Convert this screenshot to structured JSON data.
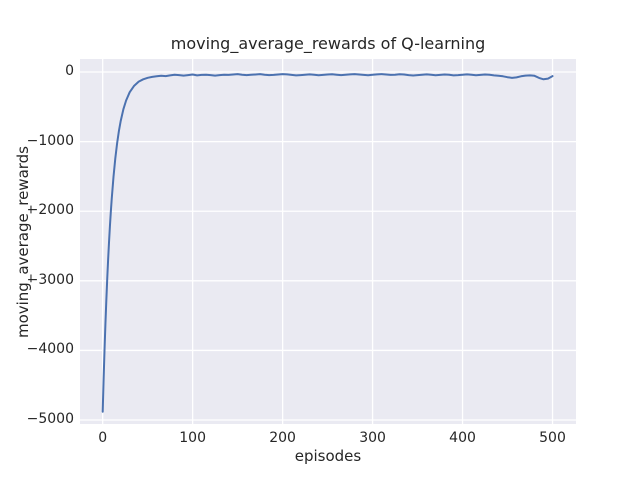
{
  "figure": {
    "background": "#ffffff",
    "axes_background": "#eaeaf2",
    "grid_color": "#ffffff",
    "text_color": "#262626"
  },
  "chart_data": {
    "type": "line",
    "title": "moving_average_rewards of Q-learning",
    "xlabel": "episodes",
    "ylabel": "moving_average_rewards",
    "legend": null,
    "grid": true,
    "xlim": [
      -25.2,
      526.1
    ],
    "ylim": [
      -5057,
      187
    ],
    "xticks": [
      0,
      100,
      200,
      300,
      400,
      500
    ],
    "xtick_labels": [
      "0",
      "100",
      "200",
      "300",
      "400",
      "500"
    ],
    "yticks": [
      0,
      -1000,
      -2000,
      -3000,
      -4000,
      -5000
    ],
    "ytick_labels": [
      "0",
      "−1000",
      "−2000",
      "−3000",
      "−4000",
      "−5000"
    ],
    "line_color": "#4c72b0",
    "series": [
      {
        "name": "moving_average_rewards",
        "x": [
          0,
          1,
          2,
          3,
          4,
          5,
          6,
          7,
          8,
          9,
          10,
          12,
          14,
          16,
          18,
          20,
          23,
          26,
          30,
          35,
          40,
          45,
          50,
          55,
          60,
          65,
          70,
          75,
          80,
          85,
          90,
          95,
          100,
          105,
          110,
          115,
          120,
          125,
          130,
          135,
          140,
          145,
          150,
          155,
          160,
          165,
          170,
          175,
          180,
          185,
          190,
          195,
          200,
          205,
          210,
          215,
          220,
          225,
          230,
          235,
          240,
          245,
          250,
          255,
          260,
          265,
          270,
          275,
          280,
          285,
          290,
          295,
          300,
          305,
          310,
          315,
          320,
          325,
          330,
          335,
          340,
          345,
          350,
          355,
          360,
          365,
          370,
          375,
          380,
          385,
          390,
          395,
          400,
          405,
          410,
          415,
          420,
          425,
          430,
          435,
          440,
          445,
          450,
          455,
          460,
          465,
          470,
          475,
          480,
          485,
          490,
          495,
          500
        ],
        "y": [
          -4880,
          -4420,
          -4004,
          -3628,
          -3288,
          -2979,
          -2701,
          -2449,
          -2221,
          -2014,
          -1827,
          -1505,
          -1241,
          -1025,
          -848,
          -704,
          -534,
          -409,
          -290,
          -196,
          -138,
          -104,
          -83,
          -70,
          -62,
          -55,
          -58,
          -48,
          -40,
          -45,
          -52,
          -44,
          -35,
          -48,
          -42,
          -38,
          -45,
          -52,
          -44,
          -38,
          -42,
          -35,
          -30,
          -38,
          -44,
          -40,
          -35,
          -30,
          -38,
          -45,
          -42,
          -36,
          -30,
          -34,
          -42,
          -48,
          -44,
          -38,
          -34,
          -40,
          -46,
          -42,
          -36,
          -32,
          -38,
          -44,
          -40,
          -34,
          -30,
          -36,
          -42,
          -46,
          -40,
          -34,
          -30,
          -36,
          -42,
          -38,
          -32,
          -36,
          -44,
          -50,
          -44,
          -38,
          -34,
          -40,
          -46,
          -42,
          -36,
          -40,
          -48,
          -44,
          -38,
          -34,
          -40,
          -46,
          -42,
          -36,
          -40,
          -48,
          -55,
          -62,
          -75,
          -85,
          -78,
          -62,
          -52,
          -48,
          -55,
          -85,
          -105,
          -95,
          -58
        ]
      }
    ]
  }
}
